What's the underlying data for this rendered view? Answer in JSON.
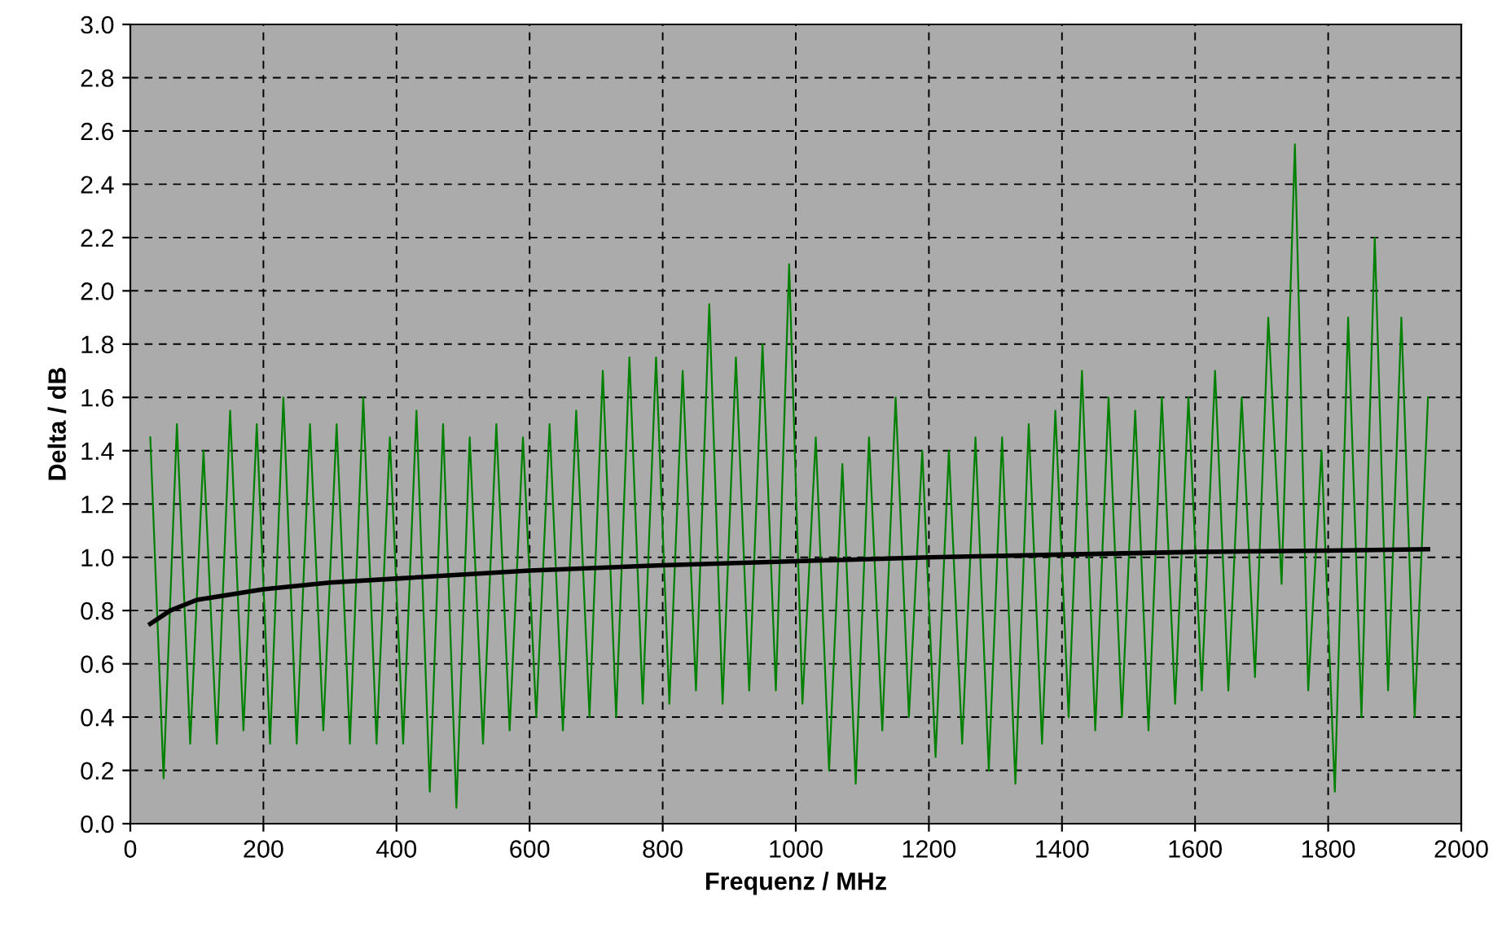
{
  "chart_data": {
    "type": "line",
    "xlabel": "Frequenz / MHz",
    "ylabel": "Delta / dB",
    "xlim": [
      0,
      2000
    ],
    "xticks": [
      0,
      200,
      400,
      600,
      800,
      1000,
      1200,
      1400,
      1600,
      1800,
      2000
    ],
    "ylim": [
      0,
      3.0
    ],
    "yticks": [
      {
        "value": 0,
        "label": "0.0"
      },
      {
        "value": 0.2,
        "label": "0.2"
      },
      {
        "value": 0.4,
        "label": "0.4"
      },
      {
        "value": 0.6,
        "label": "0.6"
      },
      {
        "value": 0.8,
        "label": "0.8"
      },
      {
        "value": 1.0,
        "label": "1.0"
      },
      {
        "value": 1.2,
        "label": "1.2"
      },
      {
        "value": 1.4,
        "label": "1.4"
      },
      {
        "value": 1.6,
        "label": "1.6"
      },
      {
        "value": 1.8,
        "label": "1.8"
      },
      {
        "value": 2.0,
        "label": "2.0"
      },
      {
        "value": 2.2,
        "label": "2.2"
      },
      {
        "value": 2.4,
        "label": "2.4"
      },
      {
        "value": 2.6,
        "label": "2.6"
      },
      {
        "value": 2.8,
        "label": "2.8"
      },
      {
        "value": 3.0,
        "label": "3.0"
      }
    ],
    "grid": true,
    "line_style": "solid",
    "marker": "none",
    "series": [
      {
        "color": "#008000",
        "x": [
          30,
          50,
          70,
          90,
          110,
          130,
          150,
          170,
          190,
          210,
          230,
          250,
          270,
          290,
          310,
          330,
          350,
          370,
          390,
          410,
          430,
          450,
          470,
          490,
          510,
          530,
          550,
          570,
          590,
          610,
          630,
          650,
          670,
          690,
          710,
          730,
          750,
          770,
          790,
          810,
          830,
          850,
          870,
          890,
          910,
          930,
          950,
          970,
          990,
          1010,
          1030,
          1050,
          1070,
          1090,
          1110,
          1130,
          1150,
          1170,
          1190,
          1210,
          1230,
          1250,
          1270,
          1290,
          1310,
          1330,
          1350,
          1370,
          1390,
          1410,
          1430,
          1450,
          1470,
          1490,
          1510,
          1530,
          1550,
          1570,
          1590,
          1610,
          1630,
          1650,
          1670,
          1690,
          1710,
          1730,
          1750,
          1770,
          1790,
          1810,
          1830,
          1850,
          1870,
          1890,
          1910,
          1930,
          1950
        ],
        "values": [
          1.45,
          0.17,
          1.5,
          0.3,
          1.4,
          0.3,
          1.55,
          0.35,
          1.5,
          0.3,
          1.6,
          0.3,
          1.5,
          0.35,
          1.5,
          0.3,
          1.6,
          0.3,
          1.45,
          0.3,
          1.55,
          0.12,
          1.5,
          0.06,
          1.45,
          0.3,
          1.5,
          0.35,
          1.45,
          0.4,
          1.5,
          0.35,
          1.55,
          0.4,
          1.7,
          0.4,
          1.75,
          0.45,
          1.75,
          0.45,
          1.7,
          0.5,
          1.95,
          0.45,
          1.75,
          0.5,
          1.8,
          0.5,
          2.1,
          0.45,
          1.45,
          0.2,
          1.35,
          0.15,
          1.45,
          0.35,
          1.6,
          0.4,
          1.4,
          0.25,
          1.4,
          0.3,
          1.45,
          0.2,
          1.45,
          0.15,
          1.5,
          0.3,
          1.55,
          0.4,
          1.7,
          0.35,
          1.6,
          0.4,
          1.55,
          0.35,
          1.6,
          0.45,
          1.6,
          0.5,
          1.7,
          0.5,
          1.6,
          0.55,
          1.9,
          0.9,
          2.55,
          0.5,
          1.4,
          0.12,
          1.9,
          0.4,
          2.2,
          0.5,
          1.9,
          0.4,
          1.6
        ]
      },
      {
        "color": "#000000",
        "x": [
          30,
          60,
          100,
          200,
          300,
          400,
          600,
          800,
          1000,
          1200,
          1400,
          1600,
          1800,
          1950
        ],
        "values": [
          0.75,
          0.8,
          0.84,
          0.88,
          0.905,
          0.92,
          0.95,
          0.97,
          0.985,
          1.0,
          1.01,
          1.02,
          1.025,
          1.03
        ]
      }
    ]
  }
}
